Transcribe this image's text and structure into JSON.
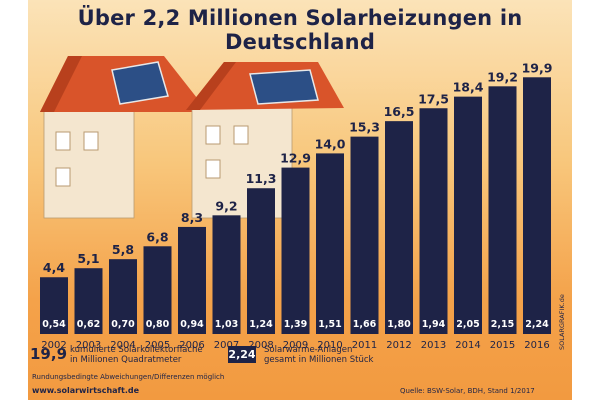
{
  "header": {
    "title": "Über 2,2 Millionen Solarheizungen in Deutschland"
  },
  "chart_data": {
    "type": "bar",
    "title": "Über 2,2 Millionen Solarheizungen in Deutschland",
    "categories": [
      "2002",
      "2003",
      "2004",
      "2005",
      "2006",
      "2007",
      "2008",
      "2009",
      "2010",
      "2011",
      "2012",
      "2013",
      "2014",
      "2015",
      "2016"
    ],
    "series": [
      {
        "name": "kumulierte Solarkollektorfläche in Millionen Quadratmeter",
        "values": [
          4.4,
          5.1,
          5.8,
          6.8,
          8.3,
          9.2,
          11.3,
          12.9,
          14.0,
          15.3,
          16.5,
          17.5,
          18.4,
          19.2,
          19.9
        ],
        "labels": [
          "4,4",
          "5,1",
          "5,8",
          "6,8",
          "8,3",
          "9,2",
          "11,3",
          "12,9",
          "14,0",
          "15,3",
          "16,5",
          "17,5",
          "18,4",
          "19,2",
          "19,9"
        ]
      },
      {
        "name": "Solarwärme-Anlagen gesamt in Millionen Stück",
        "values": [
          0.54,
          0.62,
          0.7,
          0.8,
          0.94,
          1.03,
          1.24,
          1.39,
          1.51,
          1.66,
          1.8,
          1.94,
          2.05,
          2.15,
          2.24
        ],
        "labels": [
          "0,54",
          "0,62",
          "0,70",
          "0,80",
          "0,94",
          "1,03",
          "1,24",
          "1,39",
          "1,51",
          "1,66",
          "1,80",
          "1,94",
          "2,05",
          "2,15",
          "2,24"
        ]
      }
    ],
    "ylim": [
      0,
      20
    ],
    "colors": {
      "bar": "#1e2347",
      "value_text": "#1e2347",
      "inner_text": "#ffffff"
    }
  },
  "legend": {
    "area": {
      "sample": "19,9",
      "line1": "kumulierte Solarkollektorfläche",
      "line2": "in Millionen Quadratmeter"
    },
    "units": {
      "sample": "2,24",
      "line1": "Solarwärme-Anlagen",
      "line2": "gesamt in Millionen Stück"
    }
  },
  "footer": {
    "note": "Rundungsbedingte Abweichungen/Differenzen möglich",
    "url": "www.solarwirtschaft.de",
    "source": "Quelle: BSW-Solar, BDH, Stand 1/2017",
    "credit": "SOLARGRAFIK.de"
  }
}
